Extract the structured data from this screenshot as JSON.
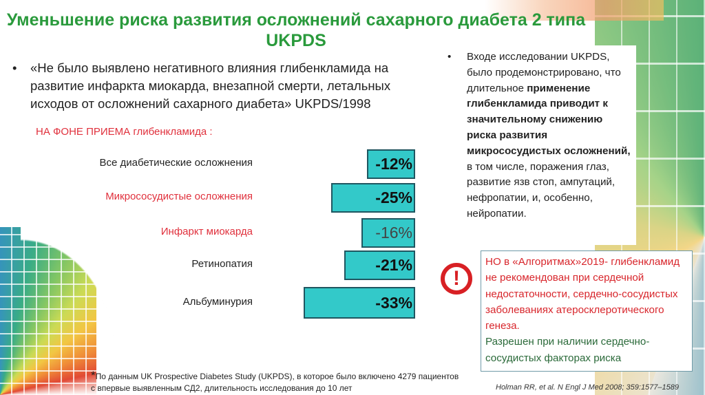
{
  "title": "Уменьшение риска развития осложнений сахарного диабета 2 типа UKPDS",
  "quote": "«Не было выявлено негативного влияния глибенкламида на развитие инфаркта миокарда, внезапной смерти, летальных исходов от осложнений сахарного диабета» UKPDS/1998",
  "bullet": "•",
  "chart_data": {
    "type": "bar",
    "orientation": "horizontal",
    "title": "НА ФОНЕ ПРИЕМА глибенкламида :",
    "categories": [
      "Все диабетические осложнения",
      "Микрососудистые осложнения",
      "Инфаркт миокарда",
      "Ретинопатия",
      "Альбуминурия"
    ],
    "values": [
      -12,
      -25,
      -16,
      -21,
      -33
    ],
    "labels": [
      "-12%",
      "-25%",
      "-16%",
      "-21%",
      "-33%"
    ],
    "highlighted_categories": [
      "Микрососудистые осложнения",
      "Инфаркт миокарда"
    ],
    "bar_color": "#33c9c9",
    "label_color_highlight": "#e0303c"
  },
  "right_text": {
    "parts": [
      {
        "text": "Входе исследовании  UKPDS, было продемонстрировано, что длительное ",
        "bold": false
      },
      {
        "text": "применение глибенкламида приводит к значительному снижению риска развития микрососудистых осложнений,",
        "bold": true
      },
      {
        "text": " в том числе, поражения глаз, развитие язв стоп, ампутаций, нефропатии, и, особенно, нейропатии.",
        "bold": false
      }
    ]
  },
  "warning": {
    "icon": "exclamation-circle-icon",
    "icon_glyph": "!",
    "red_text": "НО в «Алгоритмах»2019- глибенкламид не рекомендован при сердечной недостаточности, сердечно-сосудистых заболеваниях атеросклеротического генеза.",
    "green_text": "Разрешен при наличии сердечно-сосудистых факторах риска"
  },
  "footnote": {
    "star": "*",
    "line1": "По данным UK Prospective Diabetes Study (UKPDS), в которое было включено 4279 пациентов",
    "line2": "с впервые выявленным СД2, длительность исследования до 10 лет"
  },
  "reference": "Holman RR, et al. N Engl J Med 2008; 359:1577–1589"
}
